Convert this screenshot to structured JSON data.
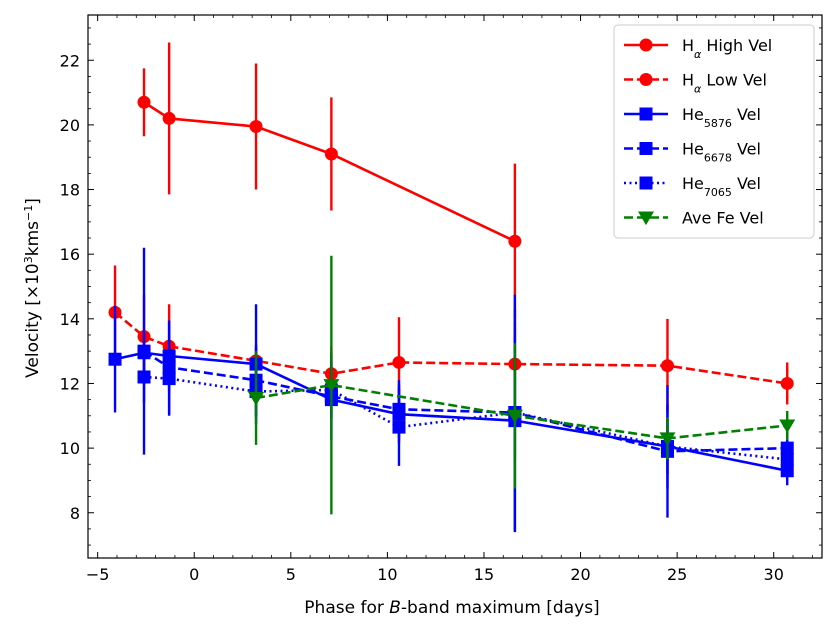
{
  "chart_data": {
    "type": "line",
    "title": "",
    "xlabel": {
      "prefix": "Phase for ",
      "italic": "B",
      "suffix": "-band maximum [days]"
    },
    "ylabel": {
      "prefix": "Velocity [",
      "times": "×",
      "base": "10",
      "exp": "3",
      "unit": "kms",
      "unit_exp": "−1",
      "suffix": "]"
    },
    "xlim": [
      -5.5,
      32.5
    ],
    "ylim": [
      6.6,
      23.4
    ],
    "xticks": [
      -5,
      0,
      5,
      10,
      15,
      20,
      25,
      30
    ],
    "xtick_labels": [
      "−5",
      "0",
      "5",
      "10",
      "15",
      "20",
      "25",
      "30"
    ],
    "yticks": [
      8,
      10,
      12,
      14,
      16,
      18,
      20,
      22
    ],
    "ytick_labels": [
      "8",
      "10",
      "12",
      "14",
      "16",
      "18",
      "20",
      "22"
    ],
    "legend_position": "top-right",
    "series": [
      {
        "name": "Hα High Vel",
        "label_main": "H",
        "label_sub": "α",
        "label_rest": " High Vel",
        "color": "#ff0000",
        "linestyle": "solid",
        "marker": "circle",
        "x": [
          -2.6,
          -1.3,
          3.2,
          7.1,
          16.6
        ],
        "y": [
          20.7,
          20.2,
          19.95,
          19.1,
          16.4
        ],
        "err": [
          1.05,
          2.35,
          1.95,
          1.75,
          2.4
        ]
      },
      {
        "name": "Hα Low Vel",
        "label_main": "H",
        "label_sub": "α",
        "label_rest": " Low Vel",
        "color": "#ff0000",
        "linestyle": "dashed",
        "marker": "circle",
        "x": [
          -4.1,
          -2.6,
          -1.3,
          3.2,
          7.1,
          10.6,
          16.6,
          24.5,
          30.7
        ],
        "y": [
          14.2,
          13.45,
          13.15,
          12.7,
          12.3,
          12.65,
          12.6,
          12.55,
          12.0
        ],
        "err": [
          1.45,
          1.3,
          1.3,
          0.45,
          0.85,
          1.4,
          1.3,
          1.45,
          0.65
        ]
      },
      {
        "name": "He5876 Vel",
        "label_main": "He",
        "label_sub": "5876",
        "label_rest": " Vel",
        "color": "#0000ff",
        "linestyle": "solid",
        "marker": "square",
        "x": [
          -4.1,
          -2.6,
          -1.3,
          3.2,
          7.1,
          10.6,
          16.6,
          24.5,
          30.7
        ],
        "y": [
          12.75,
          12.95,
          12.85,
          12.6,
          11.5,
          11.05,
          10.85,
          10.05,
          9.3
        ],
        "err": [
          1.65,
          0.6,
          1.1,
          1.85,
          0.55,
          0.9,
          3.45,
          1.3,
          0.45
        ]
      },
      {
        "name": "He6678 Vel",
        "label_main": "He",
        "label_sub": "6678",
        "label_rest": " Vel",
        "color": "#0000ff",
        "linestyle": "dashed",
        "marker": "square",
        "x": [
          -2.6,
          -1.3,
          3.2,
          7.1,
          10.6,
          16.6,
          24.5,
          30.7
        ],
        "y": [
          13.0,
          12.5,
          12.1,
          11.6,
          11.2,
          11.1,
          9.9,
          10.0
        ],
        "err": [
          3.2,
          1.45,
          1.1,
          1.35,
          0.9,
          3.65,
          2.05,
          0.55
        ]
      },
      {
        "name": "He7065 Vel",
        "label_main": "He",
        "label_sub": "7065",
        "label_rest": " Vel",
        "color": "#0000ff",
        "linestyle": "dotted",
        "marker": "square",
        "x": [
          -2.6,
          -1.3,
          3.2,
          7.1,
          10.6,
          16.6,
          24.5,
          30.7
        ],
        "y": [
          12.2,
          12.15,
          11.75,
          11.8,
          10.65,
          11.1,
          10.05,
          9.65
        ],
        "err": [
          0.8,
          1.15,
          0.8,
          0.9,
          1.2,
          1.4,
          0.85,
          0.55
        ]
      },
      {
        "name": "Ave Fe Vel",
        "label_main": "Ave Fe Vel",
        "label_sub": "",
        "label_rest": "",
        "color": "#008000",
        "linestyle": "dashed",
        "marker": "triangle-down",
        "x": [
          3.2,
          7.1,
          16.6,
          24.5,
          30.7
        ],
        "y": [
          11.55,
          11.95,
          11.0,
          10.3,
          10.7
        ],
        "err": [
          1.45,
          4.0,
          2.25,
          0.65,
          0.45
        ]
      }
    ]
  }
}
